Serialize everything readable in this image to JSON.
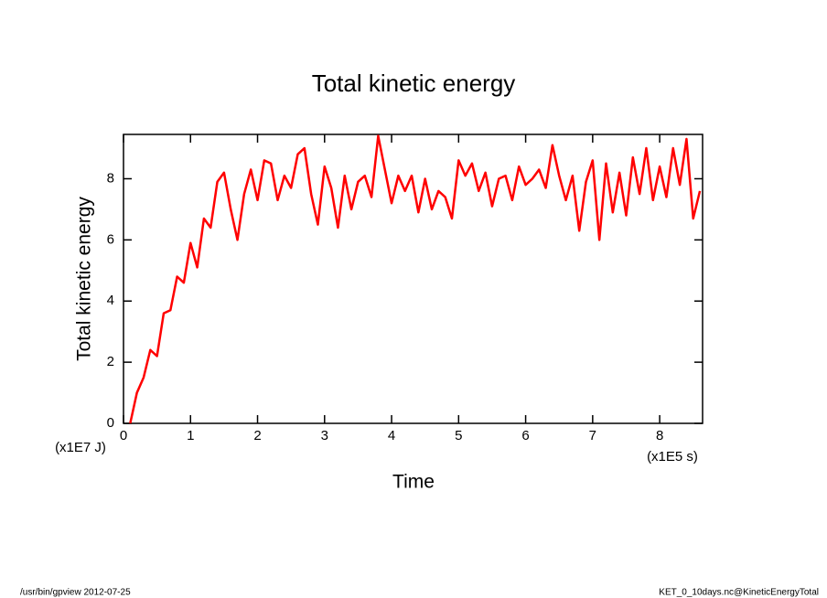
{
  "chart_data": {
    "type": "line",
    "title": "Total kinetic energy",
    "x_label": "Time",
    "y_label": "Total kinetic energy",
    "x_unit": "(x1E5 s)",
    "y_unit": "(x1E7 J)",
    "footer_left": "/usr/bin/gpview  2012-07-25",
    "footer_right": "KET_0_10days.nc@KineticEnergyTotal",
    "x": [
      0.1,
      0.2,
      0.3,
      0.4,
      0.5,
      0.6,
      0.7,
      0.8,
      0.9,
      1.0,
      1.1,
      1.2,
      1.3,
      1.4,
      1.5,
      1.6,
      1.7,
      1.8,
      1.9,
      2.0,
      2.1,
      2.2,
      2.3,
      2.4,
      2.5,
      2.6,
      2.7,
      2.8,
      2.9,
      3.0,
      3.1,
      3.2,
      3.3,
      3.4,
      3.5,
      3.6,
      3.7,
      3.8,
      3.9,
      4.0,
      4.1,
      4.2,
      4.3,
      4.4,
      4.5,
      4.6,
      4.7,
      4.8,
      4.9,
      5.0,
      5.1,
      5.2,
      5.3,
      5.4,
      5.5,
      5.6,
      5.7,
      5.8,
      5.9,
      6.0,
      6.1,
      6.2,
      6.3,
      6.4,
      6.5,
      6.6,
      6.7,
      6.8,
      6.9,
      7.0,
      7.1,
      7.2,
      7.3,
      7.4,
      7.5,
      7.6,
      7.7,
      7.8,
      7.9,
      8.0,
      8.1,
      8.2,
      8.3,
      8.4,
      8.5,
      8.6
    ],
    "series": [
      {
        "color": "#ff0000",
        "values": [
          0,
          1.0,
          1.5,
          2.4,
          2.2,
          3.6,
          3.7,
          4.8,
          4.6,
          5.9,
          5.1,
          6.7,
          6.4,
          7.9,
          8.2,
          7.0,
          6.0,
          7.5,
          8.3,
          7.3,
          8.6,
          8.5,
          7.3,
          8.1,
          7.7,
          8.8,
          9.0,
          7.5,
          6.5,
          8.4,
          7.7,
          6.4,
          8.1,
          7.0,
          7.9,
          8.1,
          7.4,
          9.4,
          8.3,
          7.2,
          8.1,
          7.6,
          8.1,
          6.9,
          8.0,
          7.0,
          7.6,
          7.4,
          6.7,
          8.6,
          8.1,
          8.5,
          7.6,
          8.2,
          7.1,
          8.0,
          8.1,
          7.3,
          8.4,
          7.8,
          8.0,
          8.3,
          7.7,
          9.1,
          8.1,
          7.3,
          8.1,
          6.3,
          7.9,
          8.6,
          6.0,
          8.5,
          6.9,
          8.2,
          6.8,
          8.7,
          7.5,
          9.0,
          7.3,
          8.4,
          7.4,
          9.0,
          7.8,
          9.3,
          6.7,
          7.6
        ]
      }
    ],
    "xlim": [
      0,
      8.64
    ],
    "ylim": [
      0,
      9.45
    ],
    "xticks": [
      0,
      1,
      2,
      3,
      4,
      5,
      6,
      7,
      8
    ],
    "yticks": [
      0,
      2,
      4,
      6,
      8
    ]
  }
}
